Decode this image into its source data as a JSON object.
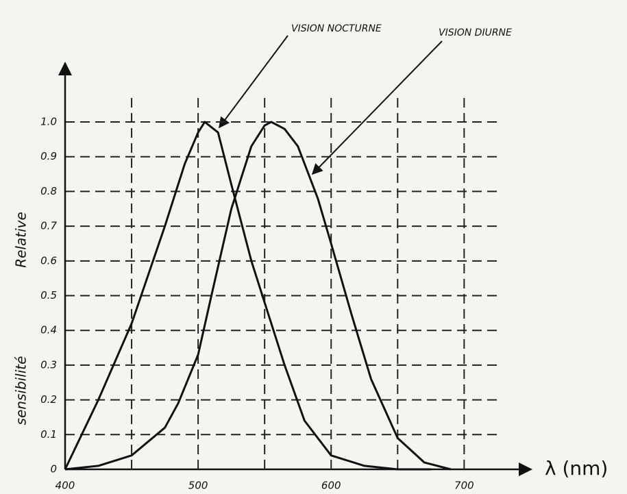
{
  "chart_data": {
    "type": "line",
    "y_label": [
      "sensibilité",
      "Relative"
    ],
    "x_label": "λ (nm)",
    "annotations": [
      "VISION NOCTURNE",
      "VISION DIURNE"
    ],
    "series": [
      {
        "name": "VISION NOCTURNE",
        "color": "#111111",
        "x": [
          400,
          425,
          450,
          475,
          490,
          500,
          505,
          515,
          525,
          540,
          550,
          565,
          580,
          600,
          625,
          650,
          675
        ],
        "values": [
          0,
          0.2,
          0.42,
          0.7,
          0.88,
          0.97,
          1.0,
          0.97,
          0.82,
          0.6,
          0.48,
          0.3,
          0.14,
          0.04,
          0.01,
          0,
          0
        ]
      },
      {
        "name": "VISION DIURNE",
        "color": "#111111",
        "x": [
          400,
          425,
          450,
          475,
          485,
          500,
          510,
          525,
          540,
          550,
          555,
          565,
          575,
          590,
          600,
          615,
          630,
          650,
          670,
          690
        ],
        "values": [
          0,
          0.01,
          0.04,
          0.12,
          0.19,
          0.33,
          0.5,
          0.75,
          0.93,
          0.99,
          1.0,
          0.98,
          0.93,
          0.78,
          0.65,
          0.45,
          0.26,
          0.09,
          0.02,
          0
        ]
      }
    ],
    "xlim": [
      400,
      740
    ],
    "ylim": [
      0,
      1.15
    ],
    "xticks": [
      400,
      500,
      600,
      700
    ],
    "xgrid": [
      450,
      550,
      650
    ],
    "yticks": [
      0,
      0.1,
      0.2,
      0.3,
      0.4,
      0.5,
      0.6,
      0.7,
      0.8,
      0.9,
      {
        "value": 1,
        "label": "1.0"
      }
    ],
    "grid": true
  }
}
